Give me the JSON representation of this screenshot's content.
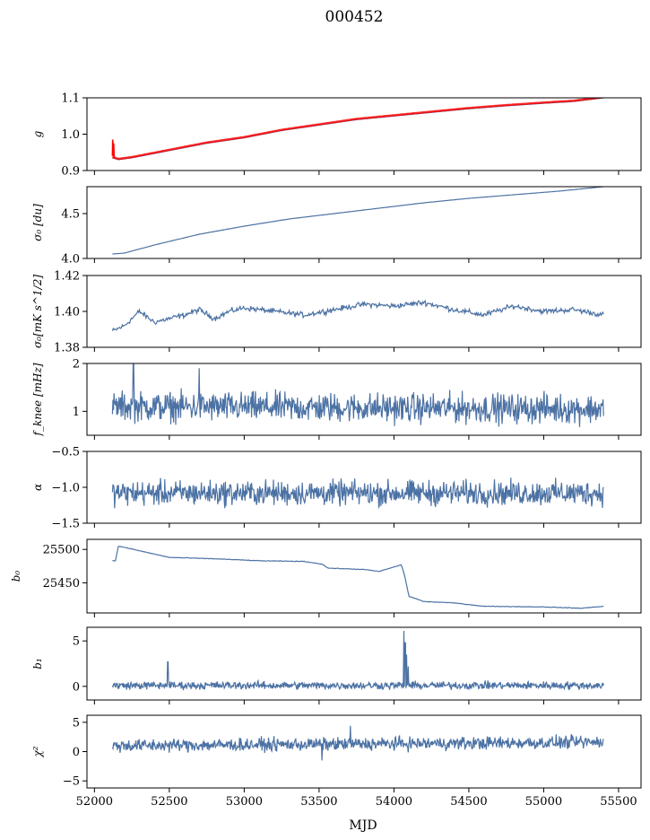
{
  "figure": {
    "title": "000452",
    "xlabel": "MJD"
  },
  "colors": {
    "series": "#4c72a4",
    "fit": "#ff0000",
    "axes": "#000000"
  },
  "chart_data": {
    "type": "line",
    "shared_x": {
      "label": "MJD",
      "xlim": [
        51950,
        55650
      ],
      "ticks": [
        52000,
        52500,
        53000,
        53500,
        54000,
        54500,
        55000,
        55500
      ],
      "tick_labels": [
        "52000",
        "52500",
        "53000",
        "53500",
        "54000",
        "54500",
        "55000",
        "55500"
      ],
      "data_range": [
        52120,
        55400
      ]
    },
    "panels": [
      {
        "ylabel": "g",
        "ylim": [
          0.9,
          1.1
        ],
        "yticks": [
          0.9,
          1.0,
          1.1
        ],
        "ytick_labels": [
          "0.9",
          "1.0",
          "1.1"
        ],
        "series_x": [
          52120,
          52160,
          52250,
          52500,
          52750,
          53000,
          53250,
          53500,
          53750,
          54000,
          54250,
          54500,
          54750,
          55000,
          55200,
          55400
        ],
        "series_y": [
          0.935,
          0.93,
          0.935,
          0.955,
          0.975,
          0.99,
          1.01,
          1.025,
          1.04,
          1.05,
          1.06,
          1.07,
          1.078,
          1.085,
          1.09,
          1.1
        ],
        "overlay_note": "red band closely tracking blue curve; start spike to 0.985 near MJD 52120"
      },
      {
        "ylabel": "σ₀ [du]",
        "ylim": [
          4.0,
          4.8
        ],
        "yticks": [
          4.0,
          4.5
        ],
        "ytick_labels": [
          "4.0",
          "4.5"
        ],
        "series_x": [
          52120,
          52200,
          52400,
          52700,
          53000,
          53300,
          53600,
          53900,
          54200,
          54500,
          54800,
          55100,
          55400
        ],
        "series_y": [
          4.05,
          4.06,
          4.15,
          4.27,
          4.36,
          4.44,
          4.5,
          4.56,
          4.62,
          4.67,
          4.71,
          4.75,
          4.8
        ]
      },
      {
        "ylabel": "σ₀[mK s^1/2]",
        "ylim": [
          1.38,
          1.42
        ],
        "yticks": [
          1.38,
          1.4,
          1.42
        ],
        "ytick_labels": [
          "1.38",
          "1.40",
          "1.42"
        ],
        "series_x": [
          52120,
          52200,
          52300,
          52400,
          52500,
          52600,
          52700,
          52800,
          52900,
          53000,
          53200,
          53400,
          53600,
          53800,
          54000,
          54200,
          54400,
          54600,
          54800,
          55000,
          55200,
          55400
        ],
        "series_y": [
          1.389,
          1.392,
          1.4,
          1.394,
          1.396,
          1.398,
          1.401,
          1.396,
          1.4,
          1.402,
          1.4,
          1.398,
          1.401,
          1.404,
          1.403,
          1.405,
          1.401,
          1.398,
          1.403,
          1.4,
          1.401,
          1.398
        ]
      },
      {
        "ylabel": "f_knee [mHz]",
        "ylim": [
          0.5,
          2.0
        ],
        "yticks": [
          1,
          2
        ],
        "ytick_labels": [
          "1",
          "2"
        ],
        "series_x": [
          52120,
          55400
        ],
        "series_y": [
          1.1,
          1.05
        ],
        "noise": {
          "mean": 1.08,
          "spread": 0.5,
          "spikes": [
            [
              52260,
              2.0
            ],
            [
              52700,
              1.9
            ]
          ]
        }
      },
      {
        "ylabel": "α",
        "ylim": [
          -1.5,
          -0.5
        ],
        "yticks": [
          -1.5,
          -1.0,
          -0.5
        ],
        "ytick_labels": [
          "−1.5",
          "−1.0",
          "−0.5"
        ],
        "series_x": [
          52120,
          55400
        ],
        "series_y": [
          -1.08,
          -1.08
        ],
        "noise": {
          "mean": -1.08,
          "spread": 0.28,
          "spikes": []
        }
      },
      {
        "ylabel": "b₀",
        "ylim": [
          25405,
          25515
        ],
        "yticks": [
          25450,
          25500
        ],
        "ytick_labels": [
          "25450",
          "25500"
        ],
        "series_x": [
          52120,
          52140,
          52160,
          52300,
          52500,
          52800,
          53100,
          53400,
          53520,
          53560,
          53800,
          53900,
          54050,
          54070,
          54100,
          54200,
          54400,
          54600,
          55000,
          55250,
          55400
        ],
        "series_y": [
          25483,
          25483,
          25505,
          25498,
          25488,
          25486,
          25483,
          25482,
          25478,
          25472,
          25470,
          25467,
          25477,
          25462,
          25430,
          25422,
          25420,
          25415,
          25414,
          25412,
          25415
        ]
      },
      {
        "ylabel": "b₁",
        "ylim": [
          -1.5,
          6.5
        ],
        "yticks": [
          0,
          5
        ],
        "ytick_labels": [
          "0",
          "5"
        ],
        "series_x": [
          52120,
          55400
        ],
        "series_y": [
          0.1,
          0.1
        ],
        "noise": {
          "mean": 0.1,
          "spread": 0.7,
          "spikes": [
            [
              52490,
              2.7
            ],
            [
              54065,
              6.1
            ],
            [
              54075,
              4.8
            ],
            [
              54085,
              3.5
            ],
            [
              54095,
              2.2
            ]
          ]
        }
      },
      {
        "ylabel": "χ²",
        "ylim": [
          -6.2,
          6.2
        ],
        "yticks": [
          -5,
          0,
          5
        ],
        "ytick_labels": [
          "−5",
          "0",
          "5"
        ],
        "series_x": [
          52120,
          55400
        ],
        "series_y": [
          1.0,
          1.6
        ],
        "noise": {
          "mean": 1.3,
          "spread": 1.8,
          "spikes": [
            [
              53710,
              4.4
            ],
            [
              53520,
              -1.5
            ]
          ]
        }
      }
    ]
  }
}
